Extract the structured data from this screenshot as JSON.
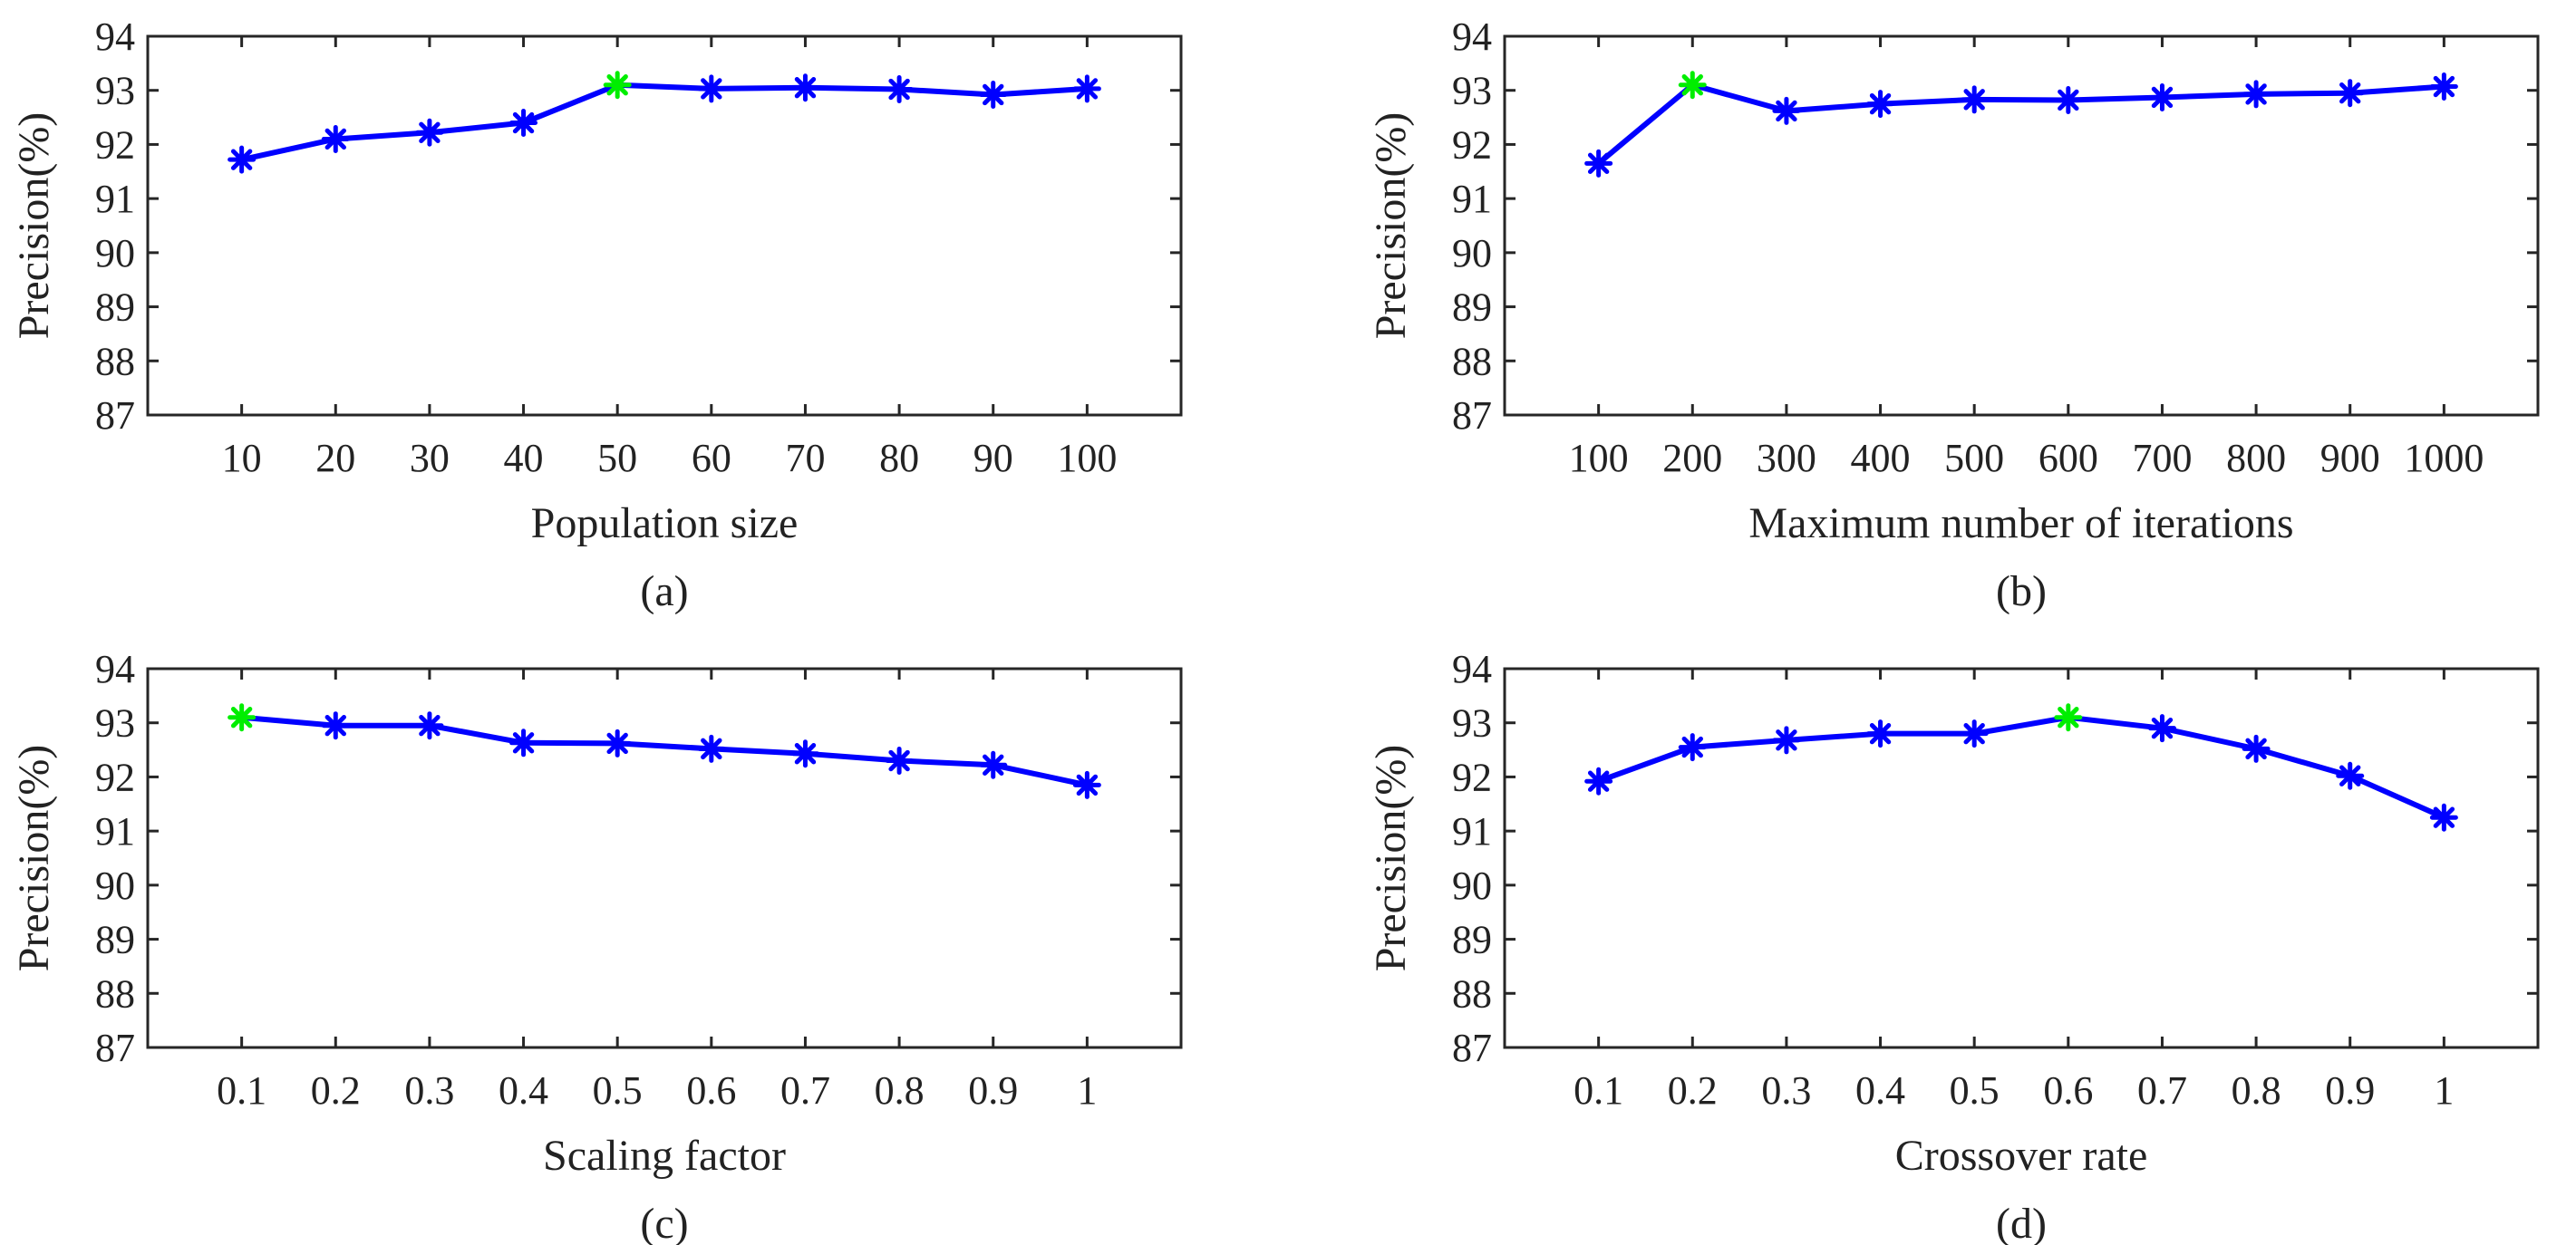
{
  "figure_title": "",
  "colors": {
    "series": "#0000FF",
    "best_point": "#00EE00",
    "axes": "#262626"
  },
  "chart_data": [
    {
      "type": "line",
      "panel": "(a)",
      "title": "",
      "xlabel": "Population size",
      "ylabel": "Precision(%)",
      "categories": [
        "10",
        "20",
        "30",
        "40",
        "50",
        "60",
        "70",
        "80",
        "90",
        "100"
      ],
      "series": [
        {
          "name": "Precision",
          "values": [
            91.72,
            92.1,
            92.22,
            92.4,
            93.1,
            93.03,
            93.05,
            93.02,
            92.92,
            93.03
          ]
        }
      ],
      "best_index": 4,
      "ylim": [
        87,
        94
      ],
      "yticks": [
        87,
        88,
        89,
        90,
        91,
        92,
        93,
        94
      ],
      "grid": false,
      "marker": "asterisk"
    },
    {
      "type": "line",
      "panel": "(b)",
      "title": "",
      "xlabel": "Maximum number of iterations",
      "ylabel": "Precision(%)",
      "categories": [
        "100",
        "200",
        "300",
        "400",
        "500",
        "600",
        "700",
        "800",
        "900",
        "1000"
      ],
      "series": [
        {
          "name": "Precision",
          "values": [
            91.65,
            93.1,
            92.62,
            92.75,
            92.83,
            92.82,
            92.87,
            92.93,
            92.95,
            93.07
          ]
        }
      ],
      "best_index": 1,
      "ylim": [
        87,
        94
      ],
      "yticks": [
        87,
        88,
        89,
        90,
        91,
        92,
        93,
        94
      ],
      "grid": false,
      "marker": "asterisk"
    },
    {
      "type": "line",
      "panel": "(c)",
      "title": "",
      "xlabel": "Scaling factor",
      "ylabel": "Precision(%)",
      "categories": [
        "0.1",
        "0.2",
        "0.3",
        "0.4",
        "0.5",
        "0.6",
        "0.7",
        "0.8",
        "0.9",
        "1"
      ],
      "series": [
        {
          "name": "Precision",
          "values": [
            93.1,
            92.95,
            92.95,
            92.63,
            92.62,
            92.52,
            92.43,
            92.3,
            92.22,
            91.85
          ]
        }
      ],
      "best_index": 0,
      "ylim": [
        87,
        94
      ],
      "yticks": [
        87,
        88,
        89,
        90,
        91,
        92,
        93,
        94
      ],
      "grid": false,
      "marker": "asterisk"
    },
    {
      "type": "line",
      "panel": "(d)",
      "title": "",
      "xlabel": "Crossover rate",
      "ylabel": "Precision(%)",
      "categories": [
        "0.1",
        "0.2",
        "0.3",
        "0.4",
        "0.5",
        "0.6",
        "0.7",
        "0.8",
        "0.9",
        "1"
      ],
      "series": [
        {
          "name": "Precision",
          "values": [
            91.92,
            92.55,
            92.68,
            92.8,
            92.8,
            93.1,
            92.9,
            92.52,
            92.02,
            91.25
          ]
        }
      ],
      "best_index": 5,
      "ylim": [
        87,
        94
      ],
      "yticks": [
        87,
        88,
        89,
        90,
        91,
        92,
        93,
        94
      ],
      "grid": false,
      "marker": "asterisk"
    }
  ]
}
